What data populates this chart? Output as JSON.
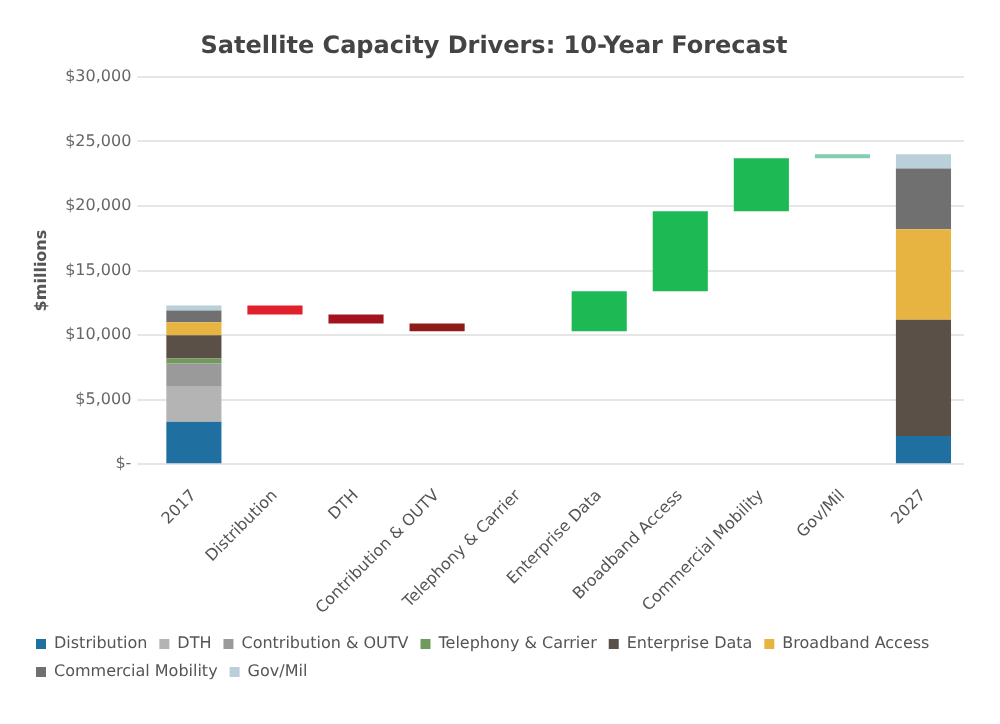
{
  "chart_data": {
    "type": "bar",
    "title": "Satellite Capacity Drivers: 10-Year Forecast",
    "ylabel": "$millions",
    "categories": [
      "2017",
      "Distribution",
      "DTH",
      "Contribution & OUTV",
      "Telephony & Carrier",
      "Enterprise Data",
      "Broadband Access",
      "Commercial Mobility",
      "Gov/Mil",
      "2027"
    ],
    "stacked": true,
    "series": [
      {
        "name": "Distribution",
        "color": "#1f6fa0",
        "values": [
          3300,
          null,
          null,
          null,
          null,
          null,
          null,
          null,
          null,
          2200
        ]
      },
      {
        "name": "DTH",
        "color": "#b4b4b4",
        "values": [
          2700,
          null,
          null,
          null,
          null,
          null,
          null,
          null,
          null,
          null
        ]
      },
      {
        "name": "Contribution & OUTV",
        "color": "#9a9a9a",
        "values": [
          1800,
          null,
          null,
          null,
          null,
          null,
          null,
          null,
          null,
          null
        ]
      },
      {
        "name": "Telephony & Carrier",
        "color": "#6f9a5c",
        "values": [
          400,
          null,
          null,
          null,
          null,
          null,
          null,
          null,
          null,
          null
        ]
      },
      {
        "name": "Enterprise Data",
        "color": "#5a5048",
        "values": [
          1800,
          null,
          null,
          null,
          null,
          null,
          null,
          null,
          null,
          9000
        ]
      },
      {
        "name": "Broadband Access",
        "color": "#e8b441",
        "values": [
          1000,
          null,
          null,
          null,
          null,
          null,
          null,
          null,
          null,
          7000
        ]
      },
      {
        "name": "Commercial Mobility",
        "color": "#707070",
        "values": [
          900,
          null,
          null,
          null,
          null,
          null,
          null,
          null,
          null,
          4700
        ]
      },
      {
        "name": "Gov/Mil",
        "color": "#b9cfd9",
        "values": [
          400,
          null,
          null,
          null,
          null,
          null,
          null,
          null,
          null,
          1100
        ]
      },
      {
        "color": "#1db954",
        "colors": [
          null,
          "#e0202a",
          "#a3131f",
          "#8e1a1a",
          null,
          "#1db954",
          "#1db954",
          "#1db954",
          "#7fcfb0",
          null
        ],
        "base": [
          null,
          12300,
          11600,
          10900,
          null,
          10300,
          13400,
          19600,
          23700,
          null
        ],
        "values": [
          null,
          -700,
          -700,
          -600,
          null,
          3100,
          6200,
          4100,
          300,
          null
        ]
      }
    ],
    "ylim": [
      0,
      30000
    ],
    "yticks": [
      {
        "value": 0,
        "label": "$-"
      },
      {
        "value": 5000,
        "label": "$5,000"
      },
      {
        "value": 10000,
        "label": "$10,000"
      },
      {
        "value": 15000,
        "label": "$15,000"
      },
      {
        "value": 20000,
        "label": "$20,000"
      },
      {
        "value": 25000,
        "label": "$25,000"
      },
      {
        "value": 30000,
        "label": "$30,000"
      }
    ],
    "grid": "y",
    "legend": "bottom"
  }
}
